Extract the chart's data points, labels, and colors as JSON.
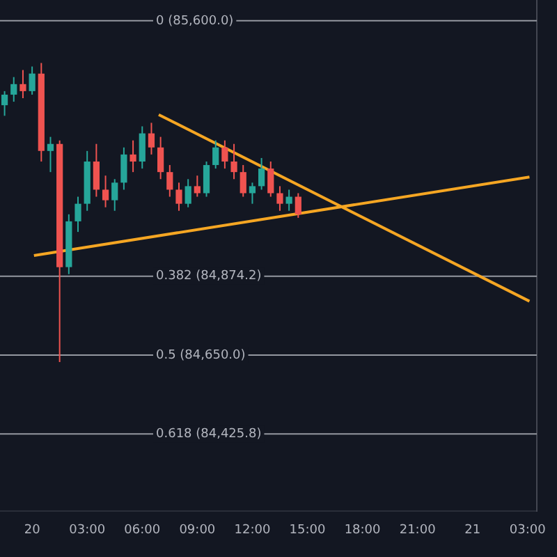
{
  "chart_data": {
    "type": "candlestick",
    "x": [
      "--03-19T22:30",
      "--03-19T23:00",
      "--03-19T23:30",
      "--03-20T00:00",
      "--03-20T00:30",
      "--03-20T01:00",
      "--03-20T01:30",
      "--03-20T02:00",
      "--03-20T02:30",
      "--03-20T03:00",
      "--03-20T03:30",
      "--03-20T04:00",
      "--03-20T04:30",
      "--03-20T05:00",
      "--03-20T05:30",
      "--03-20T06:00",
      "--03-20T06:30",
      "--03-20T07:00",
      "--03-20T07:30",
      "--03-20T08:00",
      "--03-20T08:30",
      "--03-20T09:00",
      "--03-20T09:30",
      "--03-20T10:00",
      "--03-20T10:30",
      "--03-20T11:00",
      "--03-20T11:30",
      "--03-20T12:00",
      "--03-20T12:30",
      "--03-20T13:00",
      "--03-20T13:30",
      "--03-20T14:00",
      "--03-20T14:30"
    ],
    "ohlc": [
      [
        85360,
        85400,
        85330,
        85390
      ],
      [
        85390,
        85440,
        85370,
        85420
      ],
      [
        85420,
        85460,
        85380,
        85400
      ],
      [
        85400,
        85470,
        85390,
        85450
      ],
      [
        85450,
        85480,
        85200,
        85230
      ],
      [
        85230,
        85270,
        85170,
        85250
      ],
      [
        85250,
        85260,
        84630,
        84900
      ],
      [
        84900,
        85050,
        84880,
        85030
      ],
      [
        85030,
        85100,
        85000,
        85080
      ],
      [
        85080,
        85230,
        85060,
        85200
      ],
      [
        85200,
        85250,
        85100,
        85120
      ],
      [
        85120,
        85160,
        85070,
        85090
      ],
      [
        85090,
        85150,
        85060,
        85140
      ],
      [
        85140,
        85240,
        85120,
        85220
      ],
      [
        85220,
        85260,
        85170,
        85200
      ],
      [
        85200,
        85300,
        85180,
        85280
      ],
      [
        85280,
        85310,
        85220,
        85240
      ],
      [
        85240,
        85270,
        85150,
        85170
      ],
      [
        85170,
        85190,
        85100,
        85120
      ],
      [
        85120,
        85140,
        85060,
        85080
      ],
      [
        85080,
        85150,
        85070,
        85130
      ],
      [
        85130,
        85160,
        85100,
        85110
      ],
      [
        85110,
        85200,
        85100,
        85190
      ],
      [
        85190,
        85260,
        85180,
        85240
      ],
      [
        85240,
        85260,
        85180,
        85200
      ],
      [
        85200,
        85250,
        85150,
        85170
      ],
      [
        85170,
        85190,
        85100,
        85110
      ],
      [
        85110,
        85140,
        85080,
        85130
      ],
      [
        85130,
        85210,
        85120,
        85180
      ],
      [
        85180,
        85200,
        85100,
        85110
      ],
      [
        85110,
        85130,
        85060,
        85080
      ],
      [
        85080,
        85120,
        85060,
        85100
      ],
      [
        85100,
        85110,
        85040,
        85050
      ]
    ],
    "series": [
      {
        "type": "line",
        "color": "#f5a623",
        "x": [
          "--03-20T06:54",
          "--03-21T03:06"
        ],
        "values": [
          85333,
          84803
        ]
      },
      {
        "type": "line",
        "color": "#f5a623",
        "x": [
          "--03-20T00:06",
          "--03-21T03:06"
        ],
        "values": [
          84933,
          85156
        ]
      }
    ],
    "xlim": [
      "--03-19T22:15",
      "--03-21T03:30"
    ],
    "xticks": [
      {
        "value": "--03-20",
        "label": "20"
      },
      {
        "value": "--03-20T03:00",
        "label": "03:00"
      },
      {
        "value": "--03-20T06:00",
        "label": "06:00"
      },
      {
        "value": "--03-20T09:00",
        "label": "09:00"
      },
      {
        "value": "--03-20T12:00",
        "label": "12:00"
      },
      {
        "value": "--03-20T15:00",
        "label": "15:00"
      },
      {
        "value": "--03-20T18:00",
        "label": "18:00"
      },
      {
        "value": "--03-20T21:00",
        "label": "21:00"
      },
      {
        "value": "--03-21",
        "label": "21"
      },
      {
        "value": "--03-21T03:00",
        "label": "03:00"
      }
    ],
    "ylim": [
      84206,
      85659
    ],
    "ref_lines": [
      {
        "axis": "y",
        "value": 85600,
        "label": "0 (85,600.0)",
        "color": "#9598a1"
      },
      {
        "axis": "y",
        "value": 84874.2,
        "label": "0.382 (84,874.2)",
        "color": "#9598a1"
      },
      {
        "axis": "y",
        "value": 84650,
        "label": "0.5 (84,650.0)",
        "color": "#9598a1"
      },
      {
        "axis": "y",
        "value": 84425.8,
        "label": "0.618 (84,425.8)",
        "color": "#9598a1"
      }
    ],
    "tick_labels": "x",
    "grid": false,
    "legend": false
  }
}
